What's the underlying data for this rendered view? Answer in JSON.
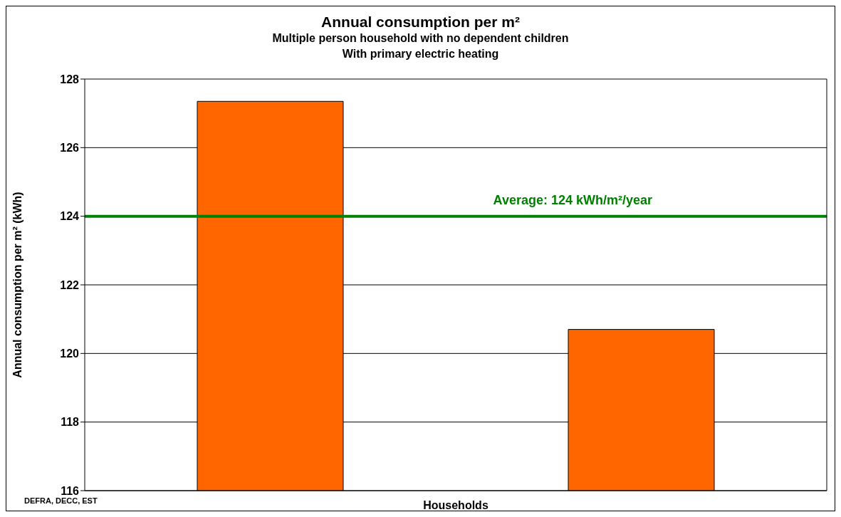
{
  "chart_data": {
    "type": "bar",
    "title": "Annual consumption per m²",
    "subtitle": "Multiple person household with no dependent children\nWith primary electric heating",
    "categories": [
      null,
      null
    ],
    "values": [
      127.35,
      120.7
    ],
    "color": "#ff6600",
    "xlabel": "Households",
    "ylabel": "Annual consumption per m² (kWh)",
    "ylim": [
      116,
      128
    ],
    "yticks": [
      116,
      118,
      120,
      122,
      124,
      126,
      128
    ],
    "grid": "y",
    "ref_lines": [
      {
        "axis": "y",
        "value": 124,
        "label": "Average: 124 kWh/m²/year",
        "color": "#008000"
      }
    ],
    "annotations": [
      "DEFRA, DECC, EST"
    ]
  }
}
